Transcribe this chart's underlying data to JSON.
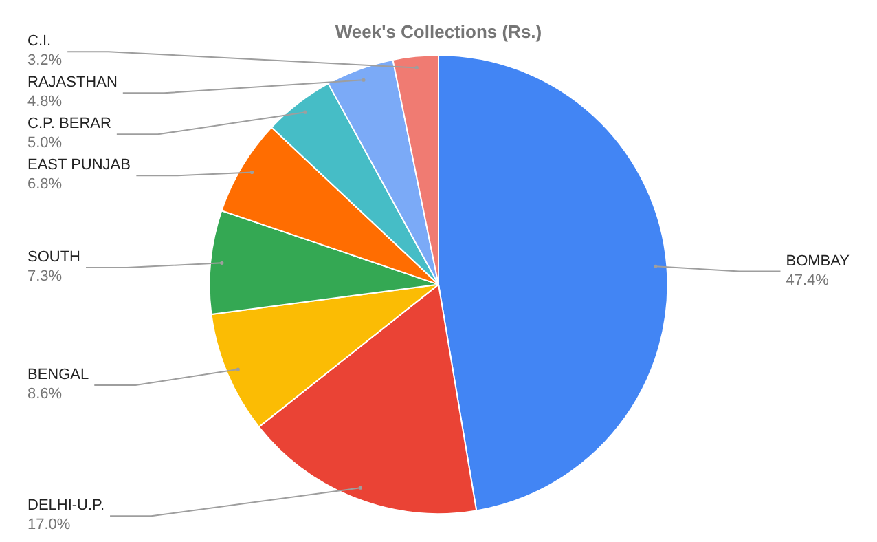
{
  "chart_data": {
    "type": "pie",
    "title": "Week's Collections (Rs.)",
    "categories": [
      "BOMBAY",
      "DELHI-U.P.",
      "BENGAL",
      "SOUTH",
      "EAST PUNJAB",
      "C.P. BERAR",
      "RAJASTHAN",
      "C.I."
    ],
    "values": [
      47.4,
      17.0,
      8.6,
      7.3,
      6.8,
      5.0,
      4.8,
      3.2
    ],
    "value_labels": [
      "47.4%",
      "17.0%",
      "8.6%",
      "7.3%",
      "6.8%",
      "5.0%",
      "4.8%",
      "3.2%"
    ],
    "colors": [
      "#4285f4",
      "#ea4335",
      "#fbbc04",
      "#34a853",
      "#ff6d01",
      "#46bdc6",
      "#7baaf7",
      "#f07b72"
    ],
    "legend": false
  }
}
